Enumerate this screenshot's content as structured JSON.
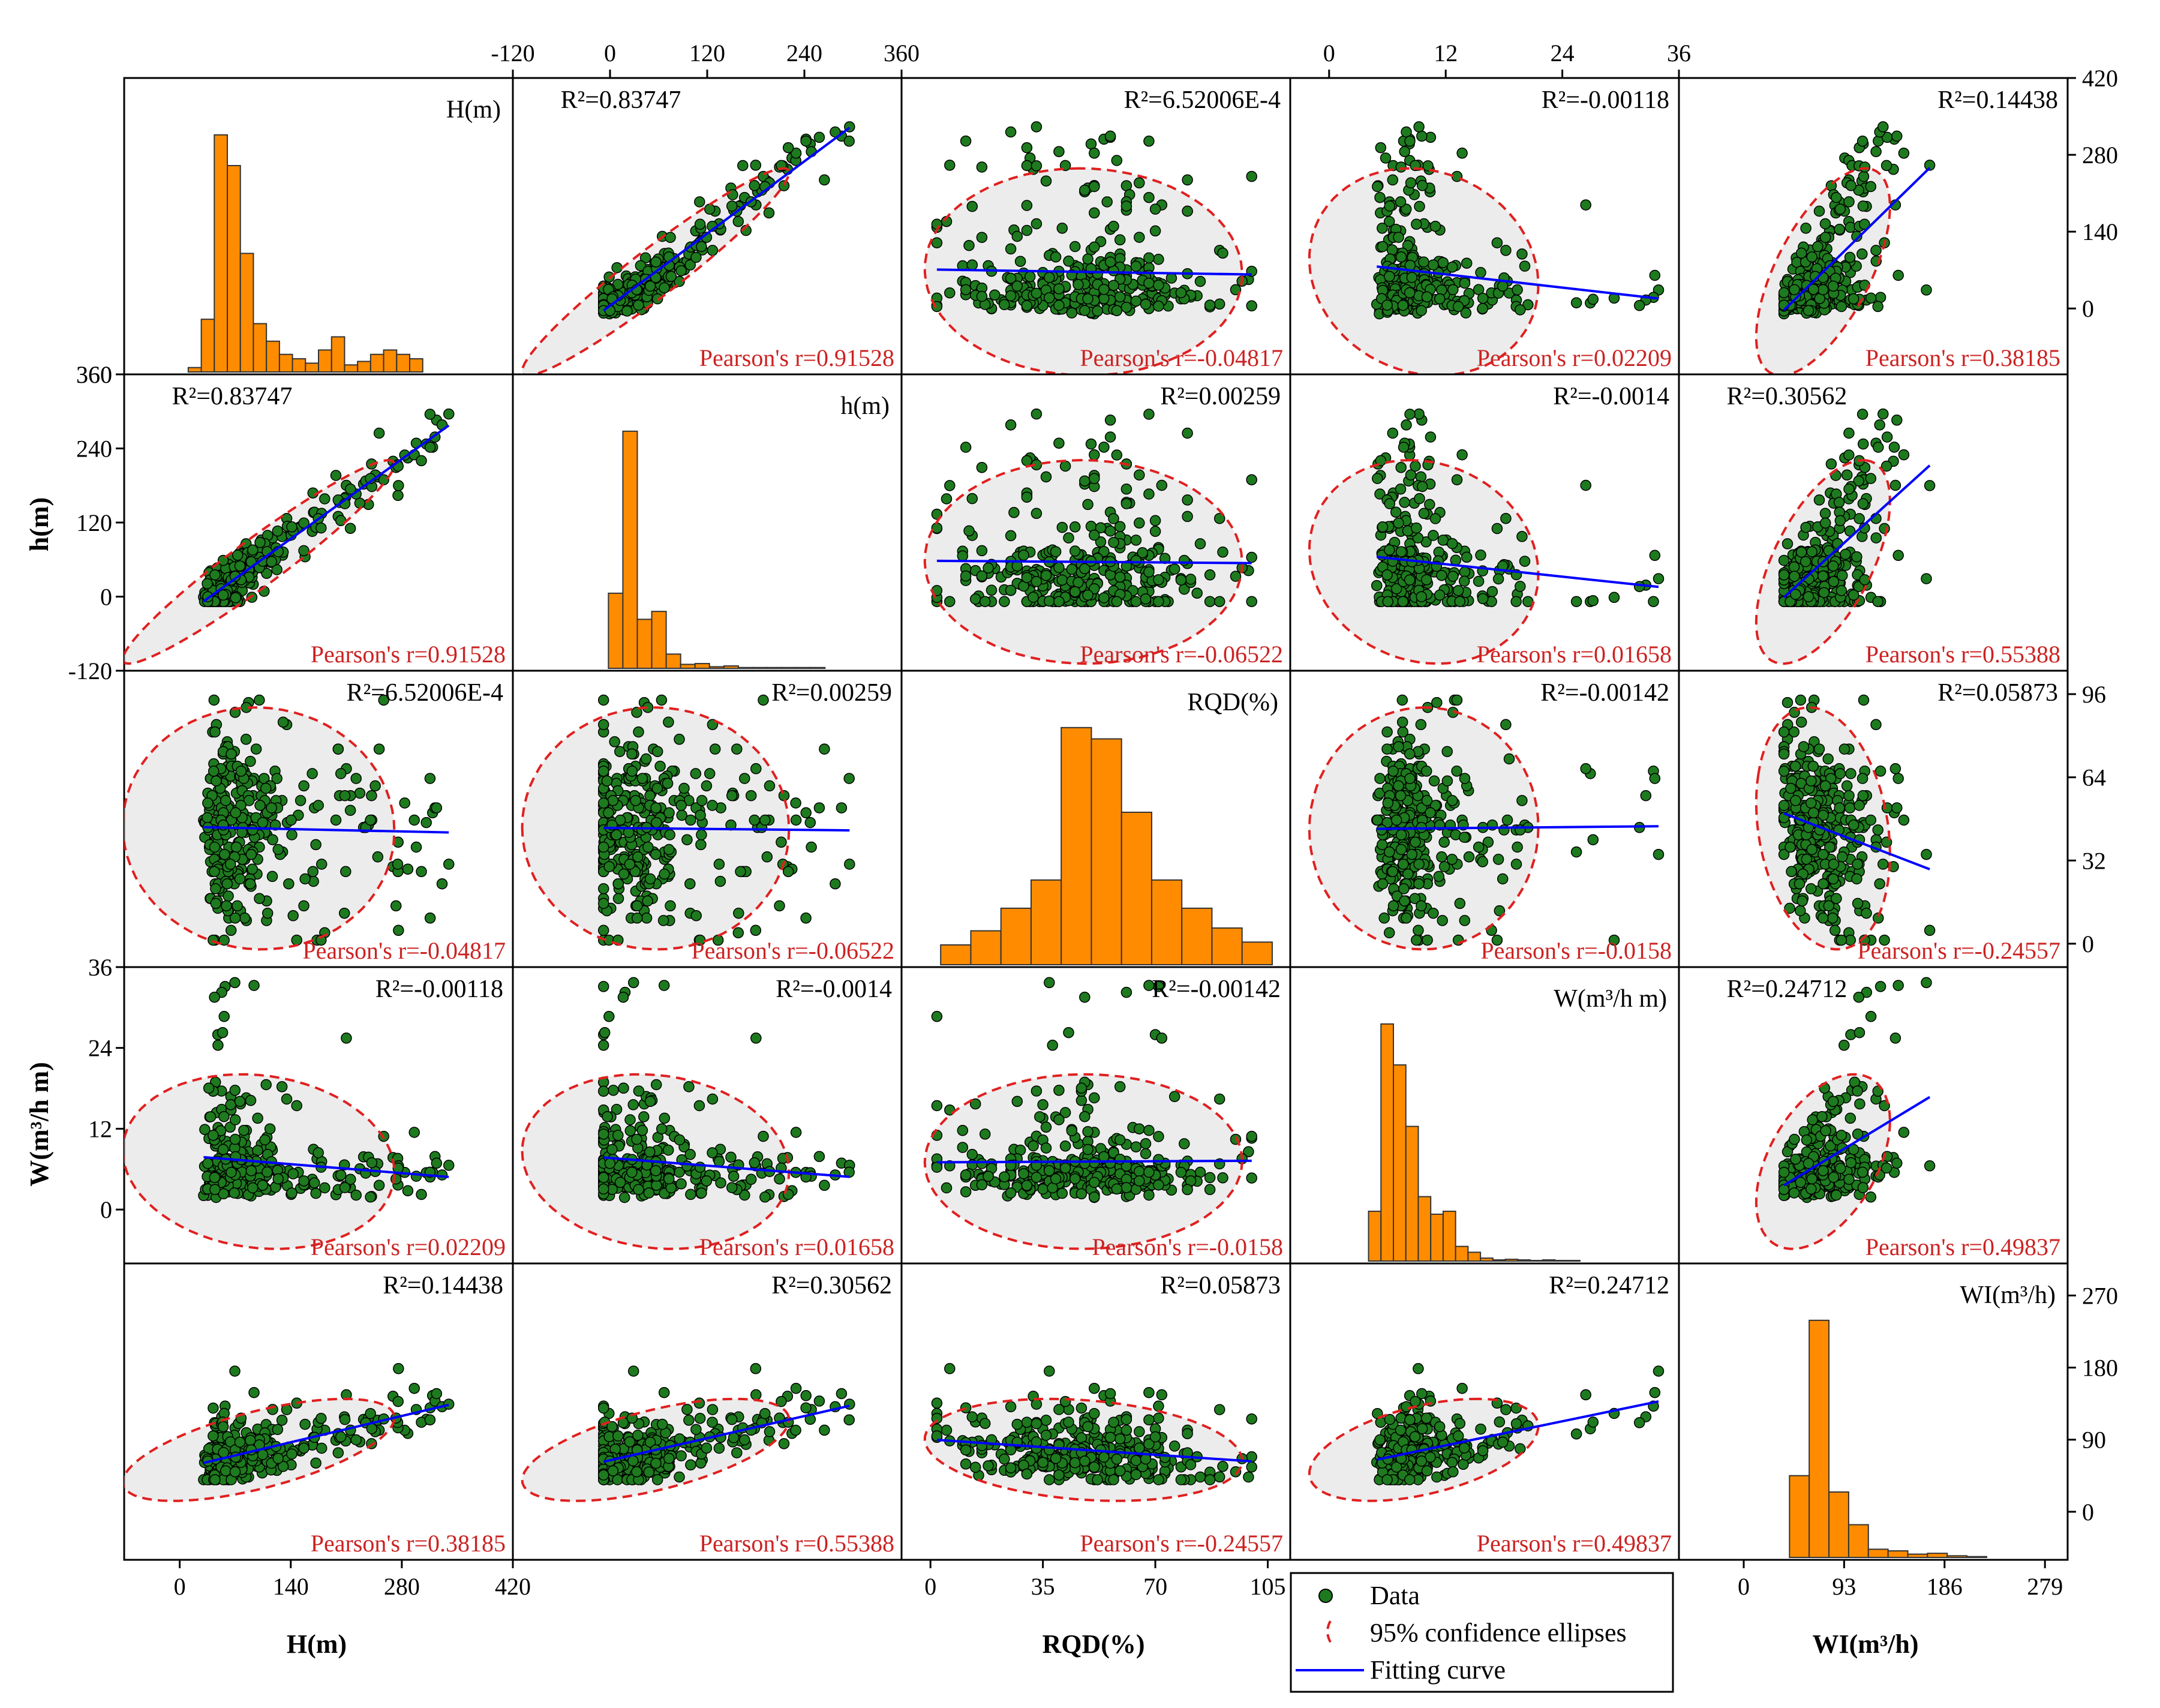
{
  "chart_data": {
    "type": "scatter-matrix",
    "variables": [
      "H(m)",
      "h(m)",
      "RQD(%)",
      "W(m³/h m)",
      "WI(m³/h)"
    ],
    "axis_titles": {
      "bottom": [
        "H(m)",
        "RQD(%)",
        "WI(m³/h)"
      ],
      "left": [
        "h(m)",
        "W(m³/h m)"
      ]
    },
    "axes": {
      "H_bottom": {
        "range": [
          -70,
          420
        ],
        "ticks": [
          "0",
          "140",
          "280",
          "420"
        ]
      },
      "RQD_bottom": {
        "range": [
          -9,
          112
        ],
        "ticks": [
          "0",
          "35",
          "70",
          "105"
        ]
      },
      "WI_bottom": {
        "range": [
          -60,
          300
        ],
        "ticks": [
          "0",
          "93",
          "186",
          "279"
        ]
      },
      "h_top": {
        "range": [
          -120,
          360
        ],
        "ticks": [
          "-120",
          "0",
          "120",
          "240",
          "360"
        ]
      },
      "W_top": {
        "range": [
          -4,
          36
        ],
        "ticks": [
          "0",
          "12",
          "24",
          "36"
        ]
      },
      "H_left": {
        "ticks": [
          "360"
        ]
      },
      "h_left": {
        "range": [
          -120,
          360
        ],
        "ticks": [
          "360",
          "240",
          "120",
          "0",
          "-120"
        ]
      },
      "W_left": {
        "range": [
          -8,
          36
        ],
        "ticks": [
          "36",
          "24",
          "12",
          "0"
        ]
      },
      "H_right": {
        "range": [
          -120,
          420
        ],
        "ticks": [
          "420",
          "280",
          "140",
          "0"
        ]
      },
      "RQD_right": {
        "range": [
          -9,
          105
        ],
        "ticks": [
          "96",
          "64",
          "32",
          "0"
        ]
      },
      "WI_right": {
        "range": [
          -60,
          310
        ],
        "ticks": [
          "270",
          "180",
          "90",
          "0"
        ]
      }
    },
    "diagonal_labels": [
      "H(m)",
      "h(m)",
      "RQD(%)",
      "W(m³/h m)",
      "WI(m³/h)"
    ],
    "histograms": [
      {
        "variable": "H(m)",
        "bin_start": 0,
        "bin_width": 17.5,
        "counts": [
          5,
          60,
          270,
          235,
          135,
          55,
          35,
          20,
          15,
          10,
          25,
          40,
          8,
          12,
          20,
          25,
          20,
          15
        ]
      },
      {
        "variable": "h(m)",
        "bin_start": -10,
        "bin_width": 19,
        "counts": [
          95,
          300,
          62,
          72,
          18,
          5,
          6,
          2,
          3,
          1,
          1,
          1,
          1,
          1,
          1
        ]
      },
      {
        "variable": "RQD(%)",
        "bin_start": 0,
        "bin_width": 10,
        "counts": [
          35,
          60,
          100,
          150,
          420,
          400,
          270,
          150,
          100,
          65,
          40
        ]
      },
      {
        "variable": "W(m³/h m)",
        "bin_start": 0,
        "bin_width": 1.5,
        "counts": [
          85,
          405,
          335,
          230,
          110,
          80,
          85,
          25,
          15,
          5,
          2,
          3,
          2,
          1,
          2,
          1,
          1
        ]
      },
      {
        "variable": "WI(m³/h)",
        "bin_start": 40,
        "bin_width": 20,
        "counts": [
          100,
          290,
          80,
          40,
          10,
          8,
          4,
          5,
          2,
          1
        ]
      }
    ],
    "cells": [
      {
        "row": 0,
        "col": 1,
        "r2": "R²=0.83747",
        "pearson": "Pearson's r=0.91528"
      },
      {
        "row": 0,
        "col": 2,
        "r2": "R²=6.52006E-4",
        "pearson": "Pearson's r=-0.04817"
      },
      {
        "row": 0,
        "col": 3,
        "r2": "R²=-0.00118",
        "pearson": "Pearson's r=0.02209"
      },
      {
        "row": 0,
        "col": 4,
        "r2": "R²=0.14438",
        "pearson": "Pearson's r=0.38185"
      },
      {
        "row": 1,
        "col": 0,
        "r2": "R²=0.83747",
        "pearson": "Pearson's r=0.91528"
      },
      {
        "row": 1,
        "col": 2,
        "r2": "R²=0.00259",
        "pearson": "Pearson's r=-0.06522"
      },
      {
        "row": 1,
        "col": 3,
        "r2": "R²=-0.0014",
        "pearson": "Pearson's r=0.01658"
      },
      {
        "row": 1,
        "col": 4,
        "r2": "R²=0.30562",
        "pearson": "Pearson's r=0.55388"
      },
      {
        "row": 2,
        "col": 0,
        "r2": "R²=6.52006E-4",
        "pearson": "Pearson's r=-0.04817"
      },
      {
        "row": 2,
        "col": 1,
        "r2": "R²=0.00259",
        "pearson": "Pearson's r=-0.06522"
      },
      {
        "row": 2,
        "col": 3,
        "r2": "R²=-0.00142",
        "pearson": "Pearson's r=-0.0158"
      },
      {
        "row": 2,
        "col": 4,
        "r2": "R²=0.05873",
        "pearson": "Pearson's r=-0.24557"
      },
      {
        "row": 3,
        "col": 0,
        "r2": "R²=-0.00118",
        "pearson": "Pearson's r=0.02209"
      },
      {
        "row": 3,
        "col": 1,
        "r2": "R²=-0.0014",
        "pearson": "Pearson's r=0.01658"
      },
      {
        "row": 3,
        "col": 2,
        "r2": "R²=-0.00142",
        "pearson": "Pearson's r=-0.0158"
      },
      {
        "row": 3,
        "col": 4,
        "r2": "R²=0.24712",
        "pearson": "Pearson's r=0.49837"
      },
      {
        "row": 4,
        "col": 0,
        "r2": "R²=0.14438",
        "pearson": "Pearson's r=0.38185"
      },
      {
        "row": 4,
        "col": 1,
        "r2": "R²=0.30562",
        "pearson": "Pearson's r=0.55388"
      },
      {
        "row": 4,
        "col": 2,
        "r2": "R²=0.05873",
        "pearson": "Pearson's r=-0.24557"
      },
      {
        "row": 4,
        "col": 3,
        "r2": "R²=0.24712",
        "pearson": "Pearson's r=0.49837"
      }
    ],
    "legend": {
      "position": "bottom-center",
      "items": [
        "Data",
        "95% confidence ellipses",
        "Fitting curve"
      ]
    },
    "colors": {
      "histogram": "#ff8c00",
      "points": "#1e7a1e",
      "point_edge": "#000000",
      "fit": "#0000ff",
      "ellipse": "#e02020",
      "ellipse_fill": "#d4d4d4",
      "pearson_text": "#cc2222"
    }
  }
}
